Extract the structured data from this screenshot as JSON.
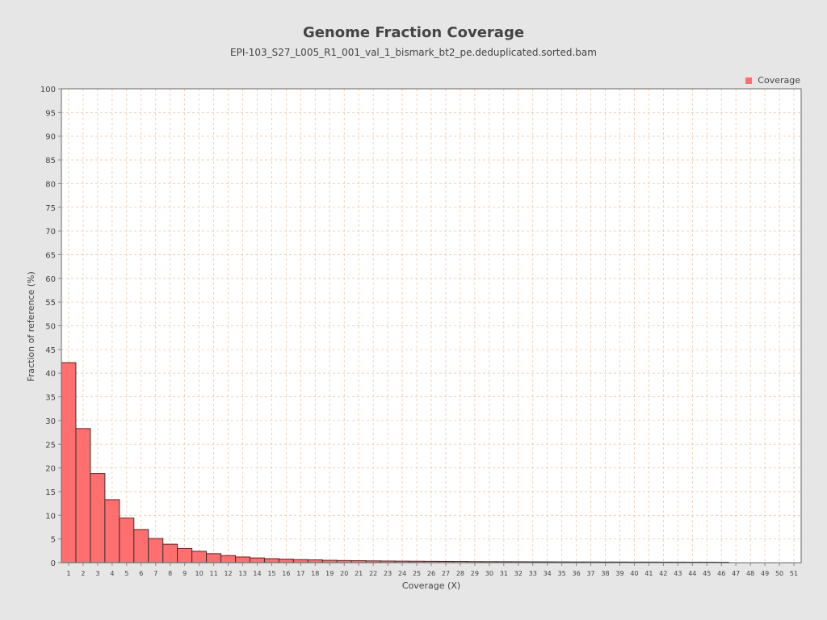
{
  "chart_data": {
    "type": "bar",
    "title": "Genome Fraction Coverage",
    "subtitle": "EPI-103_S27_L005_R1_001_val_1_bismark_bt2_pe.deduplicated.sorted.bam",
    "xlabel": "Coverage (X)",
    "ylabel": "Fraction of reference (%)",
    "ylim": [
      0,
      100
    ],
    "yticks": [
      0,
      5,
      10,
      15,
      20,
      25,
      30,
      35,
      40,
      45,
      50,
      55,
      60,
      65,
      70,
      75,
      80,
      85,
      90,
      95,
      100
    ],
    "categories": [
      "1",
      "2",
      "3",
      "4",
      "5",
      "6",
      "7",
      "8",
      "9",
      "10",
      "11",
      "12",
      "13",
      "14",
      "15",
      "16",
      "17",
      "18",
      "19",
      "20",
      "21",
      "22",
      "23",
      "24",
      "25",
      "26",
      "27",
      "28",
      "29",
      "30",
      "31",
      "32",
      "33",
      "34",
      "35",
      "36",
      "37",
      "38",
      "39",
      "40",
      "41",
      "42",
      "43",
      "44",
      "45",
      "46",
      "47",
      "48",
      "49",
      "50",
      "51"
    ],
    "series": [
      {
        "name": "Coverage",
        "color": "#ff6f6f",
        "values": [
          42.2,
          28.3,
          18.8,
          13.3,
          9.4,
          7.0,
          5.1,
          3.9,
          3.0,
          2.4,
          1.9,
          1.5,
          1.2,
          1.0,
          0.85,
          0.75,
          0.65,
          0.6,
          0.5,
          0.45,
          0.42,
          0.38,
          0.35,
          0.32,
          0.3,
          0.28,
          0.26,
          0.24,
          0.22,
          0.21,
          0.2,
          0.19,
          0.18,
          0.17,
          0.16,
          0.15,
          0.15,
          0.14,
          0.14,
          0.13,
          0.13,
          0.12,
          0.12,
          0.11,
          0.11,
          0.1,
          0.0,
          0.0,
          0.0,
          0.0,
          0.0
        ]
      }
    ],
    "grid": true,
    "legend_position": "top-right"
  },
  "colors": {
    "background": "#e6e6e6",
    "plot_background": "#ffffff",
    "grid": "#f0c8a8",
    "bar_fill": "#ff6f6f",
    "bar_stroke": "#333333"
  }
}
